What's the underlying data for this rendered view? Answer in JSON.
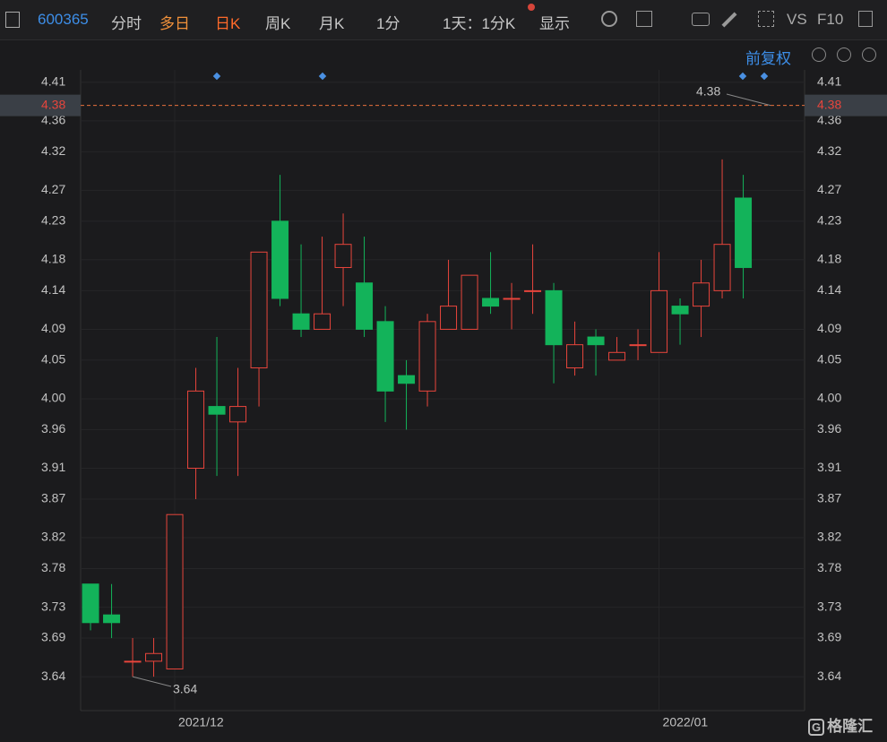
{
  "toolbar": {
    "code": "600365",
    "tabs": [
      "分时",
      "多日",
      "日K",
      "周K",
      "月K",
      "1分"
    ],
    "period": "1天：1分K",
    "display": "显示",
    "vs": "VS",
    "f10": "F10"
  },
  "adjust": "前复权",
  "logo": "格隆汇",
  "chart_data": {
    "type": "candlestick",
    "categories": [
      null,
      null,
      null,
      null,
      "2021/12",
      null,
      null,
      null,
      null,
      null,
      null,
      null,
      null,
      null,
      null,
      null,
      null,
      null,
      null,
      null,
      null,
      null,
      null,
      null,
      null,
      null,
      null,
      "2022/01",
      null,
      null,
      null,
      null
    ],
    "open": [
      3.76,
      3.72,
      3.66,
      3.66,
      3.65,
      3.91,
      3.99,
      3.97,
      4.04,
      4.23,
      4.11,
      4.09,
      4.17,
      4.15,
      4.1,
      4.03,
      4.01,
      4.09,
      4.09,
      4.13,
      4.13,
      4.14,
      4.14,
      4.04,
      4.08,
      4.05,
      4.07,
      4.06,
      4.12,
      4.12,
      4.14,
      4.26
    ],
    "high": [
      3.76,
      3.76,
      3.69,
      3.69,
      3.85,
      4.04,
      4.08,
      4.04,
      4.19,
      4.29,
      4.2,
      4.21,
      4.24,
      4.21,
      4.12,
      4.05,
      4.11,
      4.18,
      4.16,
      4.19,
      4.15,
      4.2,
      4.15,
      4.1,
      4.09,
      4.08,
      4.09,
      4.19,
      4.13,
      4.18,
      4.31,
      4.29
    ],
    "low": [
      3.7,
      3.69,
      3.64,
      3.64,
      3.65,
      3.87,
      3.9,
      3.9,
      3.99,
      4.12,
      4.08,
      4.09,
      4.12,
      4.08,
      3.97,
      3.96,
      3.99,
      4.09,
      4.09,
      4.11,
      4.09,
      4.11,
      4.02,
      4.03,
      4.03,
      4.05,
      4.05,
      4.06,
      4.07,
      4.08,
      4.13,
      4.13
    ],
    "close": [
      3.71,
      3.71,
      3.66,
      3.67,
      3.85,
      4.01,
      3.98,
      3.99,
      4.19,
      4.13,
      4.09,
      4.11,
      4.2,
      4.09,
      4.01,
      4.02,
      4.1,
      4.12,
      4.16,
      4.12,
      4.13,
      4.14,
      4.07,
      4.07,
      4.07,
      4.06,
      4.07,
      4.14,
      4.11,
      4.15,
      4.2,
      4.17
    ],
    "up_color": "#e8453c",
    "down_color": "#13b35a",
    "ylim": [
      3.596,
      4.426
    ],
    "yticks": [
      4.41,
      4.36,
      4.32,
      4.27,
      4.23,
      4.18,
      4.14,
      4.09,
      4.05,
      {
        "value": 4,
        "label": "4.00"
      },
      3.96,
      3.91,
      3.87,
      3.82,
      3.78,
      3.73,
      3.69,
      3.64
    ],
    "grid": true,
    "price_line": 4.38,
    "annotations": [
      {
        "label": "4.38",
        "value": 4.38
      },
      {
        "label": "3.64",
        "value": 3.64
      }
    ]
  }
}
